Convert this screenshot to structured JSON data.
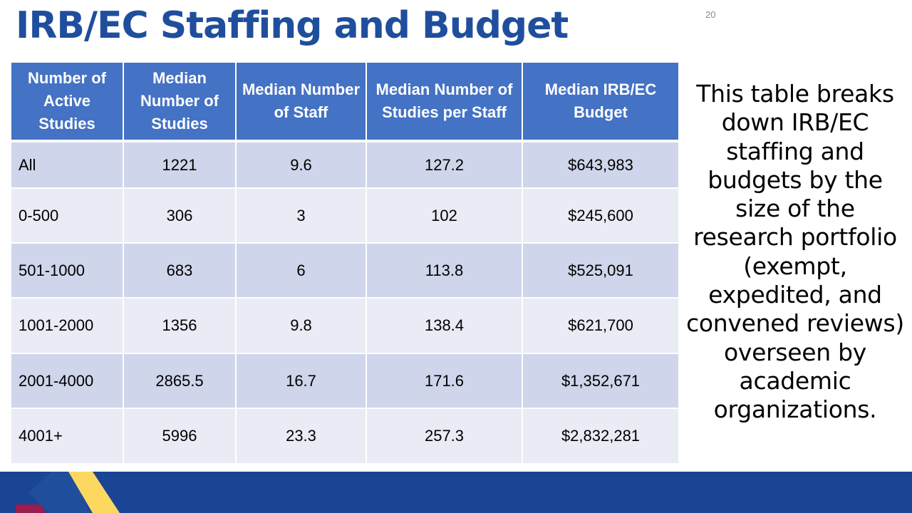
{
  "slide": {
    "title": "IRB/EC Staffing and Budget",
    "number": "20"
  },
  "table": {
    "headers": [
      "Number of Active Studies",
      "Median Number of Studies",
      "Median Number of Staff",
      "Median Number of Studies per Staff",
      "Median IRB/EC Budget"
    ],
    "rows": [
      [
        "All",
        "1221",
        "9.6",
        "127.2",
        "$643,983"
      ],
      [
        "0-500",
        "306",
        "3",
        "102",
        "$245,600"
      ],
      [
        "501-1000",
        "683",
        "6",
        "113.8",
        "$525,091"
      ],
      [
        "1001-2000",
        "1356",
        "9.8",
        "138.4",
        "$621,700"
      ],
      [
        "2001-4000",
        "2865.5",
        "16.7",
        "171.6",
        "$1,352,671"
      ],
      [
        "4001+",
        "5996",
        "23.3",
        "257.3",
        "$2,832,281"
      ]
    ]
  },
  "sidebar": {
    "description": "This table breaks down IRB/EC staffing and budgets by the size of the research portfolio (exempt, expedited, and convened reviews) overseen by academic organizations."
  },
  "colors": {
    "title": "#1f4e9c",
    "header_bg": "#4472c4",
    "row_odd": "#cfd5ea",
    "row_even": "#e9ebf5",
    "footer": "#1a4494",
    "logo_yellow": "#fcd860",
    "logo_blue": "#1f4e9c",
    "logo_maroon": "#9b1c4e"
  }
}
